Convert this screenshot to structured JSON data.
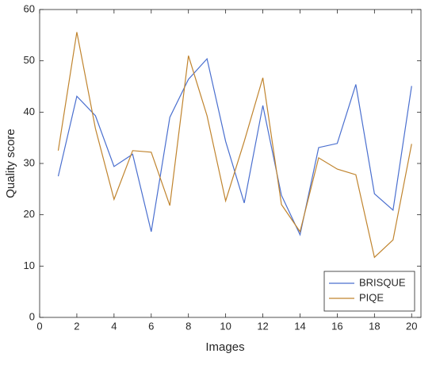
{
  "chart_data": {
    "type": "line",
    "x": [
      1,
      2,
      3,
      4,
      5,
      6,
      7,
      8,
      9,
      10,
      11,
      12,
      13,
      14,
      15,
      16,
      17,
      18,
      19,
      20
    ],
    "series": [
      {
        "name": "BRISQUE",
        "color": "#4a6fcf",
        "values": [
          27.5,
          43.1,
          39.3,
          29.4,
          31.8,
          16.7,
          39,
          46.4,
          50.4,
          34.3,
          22.3,
          41.3,
          23.8,
          16.1,
          33.1,
          33.9,
          45.4,
          24.1,
          20.9,
          45.1
        ]
      },
      {
        "name": "PIQE",
        "color": "#c0842e",
        "values": [
          32.5,
          55.6,
          36.8,
          23,
          32.5,
          32.2,
          21.8,
          51,
          39.3,
          22.7,
          34.3,
          46.7,
          22,
          16.7,
          31.1,
          28.9,
          27.8,
          11.7,
          15.1,
          33.8
        ]
      }
    ],
    "xlabel": "Images",
    "ylabel": "Quality score",
    "xlim": [
      0,
      20.5
    ],
    "xticks": [
      0,
      2,
      4,
      6,
      8,
      10,
      12,
      14,
      16,
      18,
      20
    ],
    "ylim": [
      0,
      60
    ],
    "yticks": [
      0,
      10,
      20,
      30,
      40,
      50,
      60
    ],
    "legend": "lower right"
  }
}
